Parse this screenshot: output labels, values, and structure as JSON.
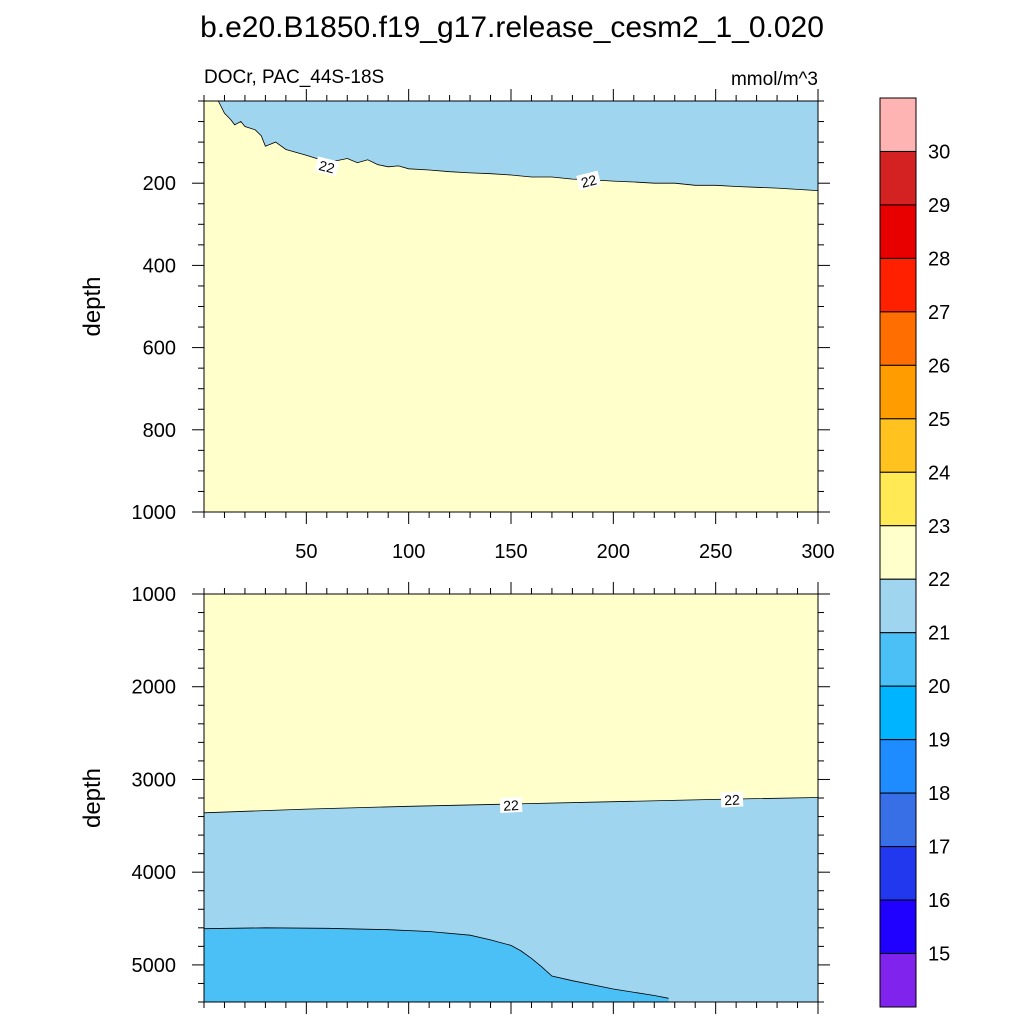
{
  "title": "b.e20.B1850.f19_g17.release_cesm2_1_0.020",
  "subtitle_left": "DOCr, PAC_44S-18S",
  "subtitle_right": "mmol/m^3",
  "colors": {
    "below_15": "#8023ec",
    "15_16": "#2000ff",
    "16_17": "#2238ee",
    "17_18": "#386ee6",
    "18_19": "#1e8cff",
    "19_20": "#00b4ff",
    "20_21": "#4ac0f6",
    "21_22": "#a0d5ef",
    "22_23": "#ffffcc",
    "23_24": "#ffea55",
    "24_25": "#ffc21e",
    "25_26": "#ff9c00",
    "26_27": "#ff6e00",
    "27_28": "#ff2000",
    "28_29": "#e80000",
    "29_30": "#d42222",
    "above_30": "#ffb4b4"
  },
  "chart_data": [
    {
      "type": "contour",
      "panel": "upper",
      "ylabel": "depth",
      "xlim": [
        0,
        300
      ],
      "ylim": [
        1000,
        0
      ],
      "xticks": [
        50,
        100,
        150,
        200,
        250,
        300
      ],
      "yticks": [
        200,
        400,
        600,
        800,
        1000
      ],
      "contour_labels": [
        {
          "text": "22",
          "x": 60,
          "y": 160
        },
        {
          "text": "22",
          "x": 188,
          "y": 195
        }
      ],
      "boundary_22": {
        "x": [
          7,
          10,
          13,
          15,
          18,
          20,
          25,
          28,
          30,
          35,
          40,
          45,
          50,
          55,
          60,
          65,
          70,
          75,
          80,
          85,
          90,
          95,
          100,
          110,
          120,
          130,
          140,
          150,
          160,
          170,
          180,
          190,
          200,
          210,
          220,
          230,
          240,
          250,
          260,
          270,
          280,
          290,
          300
        ],
        "y": [
          0,
          30,
          45,
          58,
          50,
          62,
          70,
          85,
          110,
          100,
          118,
          125,
          132,
          140,
          148,
          145,
          140,
          150,
          143,
          155,
          160,
          158,
          165,
          168,
          172,
          175,
          177,
          180,
          185,
          185,
          190,
          192,
          195,
          197,
          200,
          200,
          205,
          205,
          208,
          210,
          212,
          215,
          218
        ]
      }
    },
    {
      "type": "contour",
      "panel": "lower",
      "ylabel": "depth",
      "xlim": [
        0,
        300
      ],
      "ylim": [
        5400,
        1000
      ],
      "yticks": [
        1000,
        2000,
        3000,
        4000,
        5000
      ],
      "contour_labels": [
        {
          "text": "22",
          "x": 150,
          "y": 3280
        },
        {
          "text": "22",
          "x": 258,
          "y": 3220
        }
      ],
      "boundary_22": {
        "x": [
          0,
          50,
          100,
          150,
          200,
          250,
          300
        ],
        "y": [
          3360,
          3320,
          3290,
          3265,
          3240,
          3215,
          3195
        ]
      },
      "boundary_21": {
        "x": [
          0,
          30,
          60,
          90,
          110,
          130,
          140,
          150,
          155,
          160,
          165,
          170,
          180,
          200,
          220,
          227
        ],
        "y": [
          4610,
          4600,
          4605,
          4620,
          4640,
          4680,
          4730,
          4790,
          4850,
          4930,
          5020,
          5120,
          5170,
          5260,
          5330,
          5360
        ]
      }
    }
  ],
  "colorbar": {
    "labels": [
      "15",
      "16",
      "17",
      "18",
      "19",
      "20",
      "21",
      "22",
      "23",
      "24",
      "25",
      "26",
      "27",
      "28",
      "29",
      "30"
    ],
    "bins": [
      "below_15",
      "15_16",
      "16_17",
      "17_18",
      "18_19",
      "19_20",
      "20_21",
      "21_22",
      "22_23",
      "23_24",
      "24_25",
      "25_26",
      "26_27",
      "27_28",
      "28_29",
      "29_30",
      "above_30"
    ]
  }
}
